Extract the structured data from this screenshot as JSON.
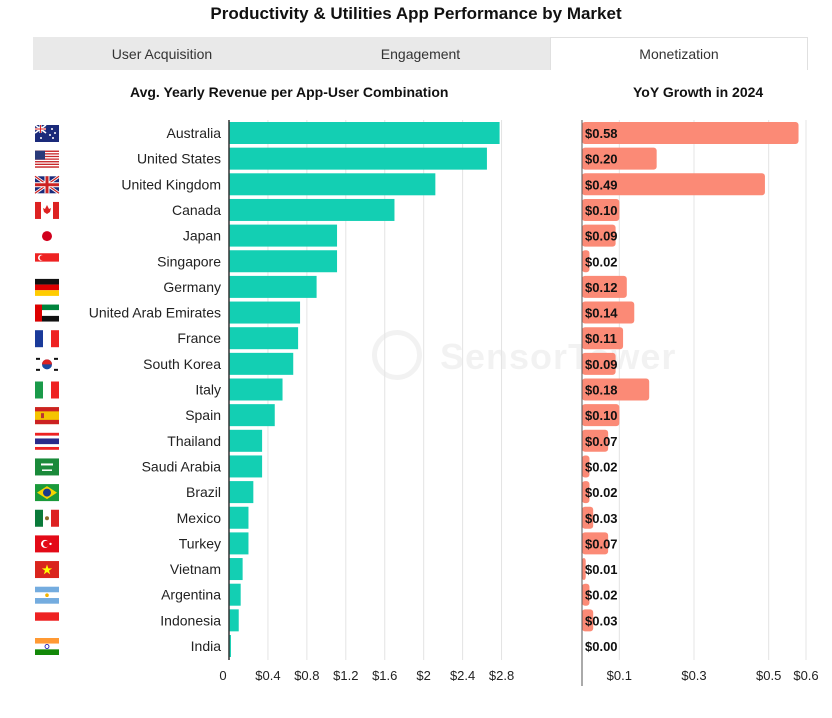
{
  "title": "Productivity & Utilities App Performance by Market",
  "tabs": [
    {
      "label": "User Acquisition",
      "active": false
    },
    {
      "label": "Engagement",
      "active": false
    },
    {
      "label": "Monetization",
      "active": true
    }
  ],
  "watermark": "SensorTower",
  "colors": {
    "revenue_bar": "#13cfb3",
    "growth_bar": "#fb8a76",
    "axis": "#333333",
    "grid": "#e4e4e4"
  },
  "chart_data": [
    {
      "type": "bar",
      "orientation": "horizontal",
      "title": "Avg. Yearly Revenue per App-User Combination",
      "categories": [
        "Australia",
        "United States",
        "United Kingdom",
        "Canada",
        "Japan",
        "Singapore",
        "Germany",
        "United Arab Emirates",
        "France",
        "South Korea",
        "Italy",
        "Spain",
        "Thailand",
        "Saudi Arabia",
        "Brazil",
        "Mexico",
        "Turkey",
        "Vietnam",
        "Argentina",
        "Indonesia",
        "India"
      ],
      "flags": [
        "flag-australia",
        "flag-united-states",
        "flag-united-kingdom",
        "flag-canada",
        "flag-japan",
        "flag-singapore",
        "flag-germany",
        "flag-united-arab-emirates",
        "flag-france",
        "flag-south-korea",
        "flag-italy",
        "flag-spain",
        "flag-thailand",
        "flag-saudi-arabia",
        "flag-brazil",
        "flag-mexico",
        "flag-turkey",
        "flag-vietnam",
        "flag-argentina",
        "flag-indonesia",
        "flag-india"
      ],
      "values": [
        2.78,
        2.65,
        2.12,
        1.7,
        1.11,
        1.11,
        0.9,
        0.73,
        0.71,
        0.66,
        0.55,
        0.47,
        0.34,
        0.34,
        0.25,
        0.2,
        0.2,
        0.14,
        0.12,
        0.1,
        0.02
      ],
      "xlim": [
        0,
        3.0
      ],
      "ticks": [
        0,
        0.4,
        0.8,
        1.2,
        1.6,
        2,
        2.4,
        2.8
      ],
      "tick_labels": [
        "0",
        "$0.4",
        "$0.8",
        "$1.2",
        "$1.6",
        "$2",
        "$2.4",
        "$2.8"
      ],
      "grid": true
    },
    {
      "type": "bar",
      "orientation": "horizontal",
      "title": "YoY Growth in 2024",
      "categories": [
        "Australia",
        "United States",
        "United Kingdom",
        "Canada",
        "Japan",
        "Singapore",
        "Germany",
        "United Arab Emirates",
        "France",
        "South Korea",
        "Italy",
        "Spain",
        "Thailand",
        "Saudi Arabia",
        "Brazil",
        "Mexico",
        "Turkey",
        "Vietnam",
        "Argentina",
        "Indonesia",
        "India"
      ],
      "values": [
        0.58,
        0.2,
        0.49,
        0.1,
        0.09,
        0.02,
        0.12,
        0.14,
        0.11,
        0.09,
        0.18,
        0.1,
        0.07,
        0.02,
        0.02,
        0.03,
        0.07,
        0.01,
        0.02,
        0.03,
        0.0
      ],
      "labels": [
        "$0.58",
        "$0.20",
        "$0.49",
        "$0.10",
        "$0.09",
        "$0.02",
        "$0.12",
        "$0.14",
        "$0.11",
        "$0.09",
        "$0.18",
        "$0.10",
        "$0.07",
        "$0.02",
        "$0.02",
        "$0.03",
        "$0.07",
        "$0.01",
        "$0.02",
        "$0.03",
        "$0.00"
      ],
      "xlim": [
        0,
        0.6
      ],
      "ticks": [
        0.1,
        0.3,
        0.5,
        0.6
      ],
      "tick_labels": [
        "$0.1",
        "$0.3",
        "$0.5",
        "$0.6"
      ],
      "grid": true
    }
  ]
}
